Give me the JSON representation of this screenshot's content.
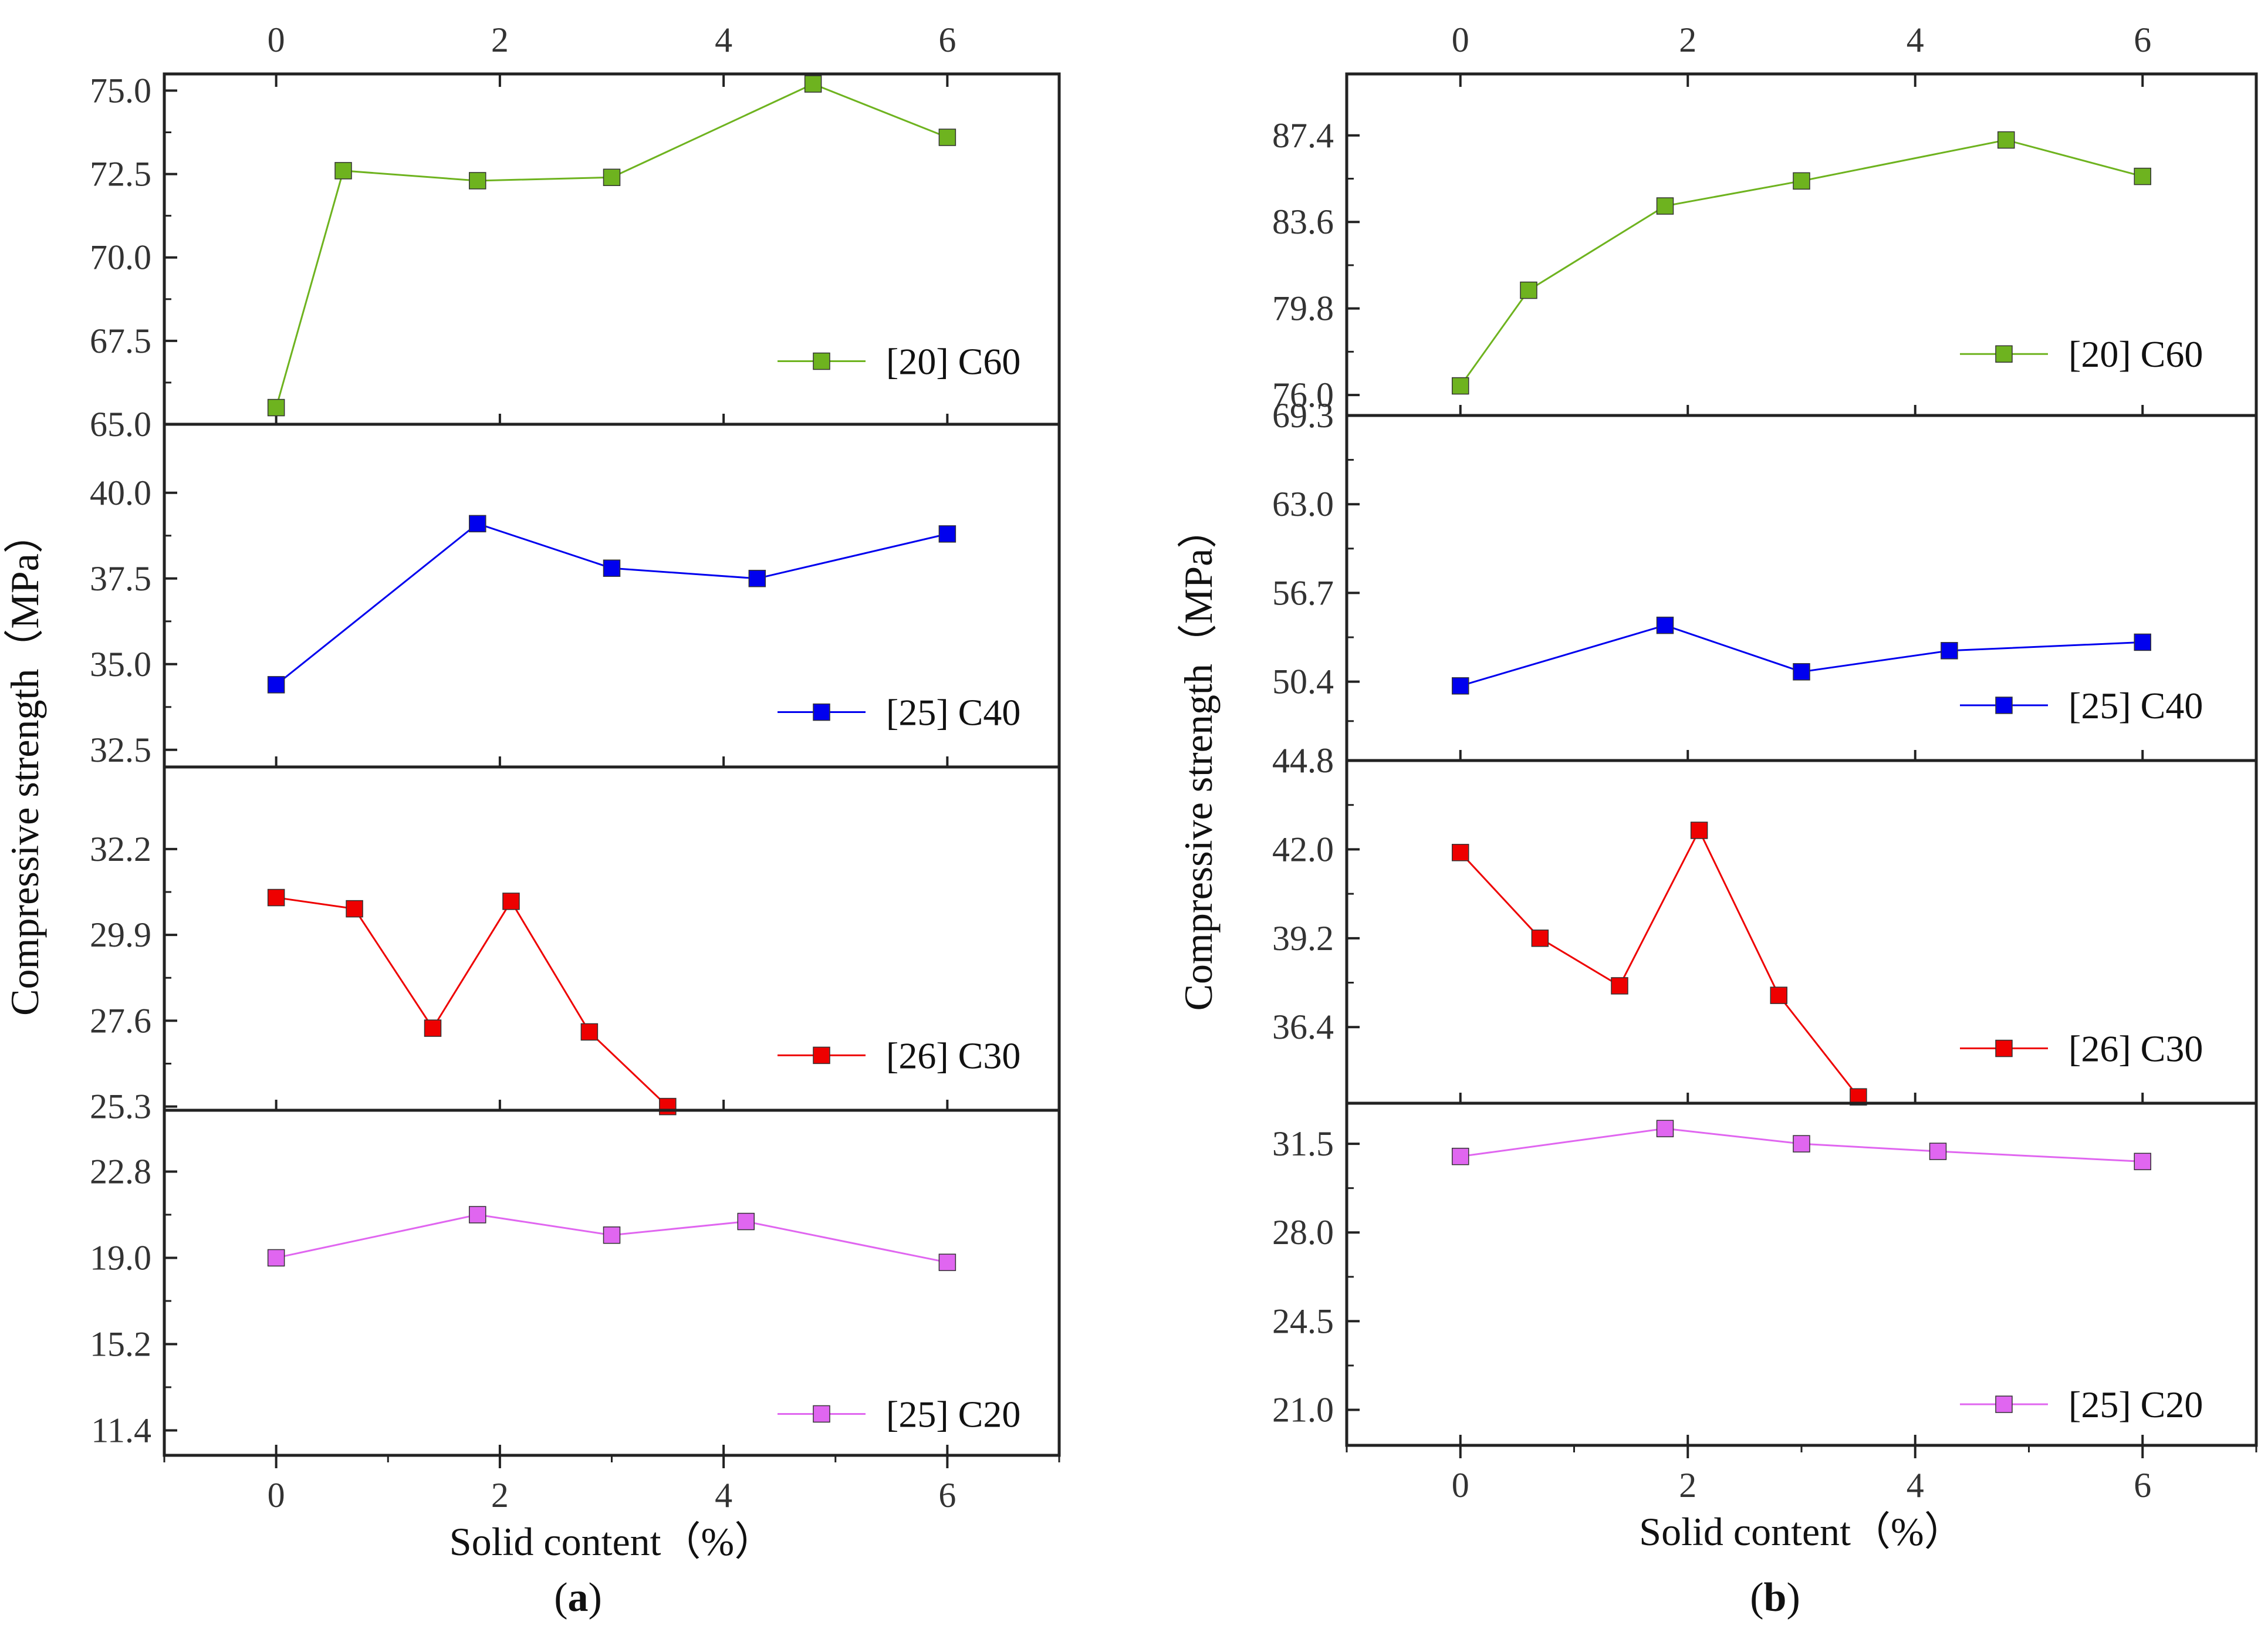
{
  "figure": {
    "ylabel": "Compressive strength（MPa）",
    "xlabel": "Solid content（%）"
  },
  "chart_data": [
    {
      "type": "line",
      "id": "a",
      "caption": {
        "open": "(",
        "letter": "a",
        "close": ")"
      },
      "xlabel": "Solid content（%）",
      "ylabel": "Compressive strength（MPa）",
      "xlim": [
        -1,
        7
      ],
      "xticks": [
        "0",
        "2",
        "4",
        "6"
      ],
      "panels": [
        {
          "name": "[20] C60",
          "color": "#6eb31f",
          "ylim": [
            65.0,
            75.5
          ],
          "yticks": [
            "65.0",
            "67.5",
            "70.0",
            "72.5",
            "75.0"
          ],
          "x": [
            0,
            0.6,
            1.8,
            3.0,
            4.8,
            6.0
          ],
          "y": [
            65.5,
            72.6,
            72.3,
            72.4,
            75.2,
            73.6
          ]
        },
        {
          "name": "[25] C40",
          "color": "#0000ee",
          "ylim": [
            32.0,
            42.0
          ],
          "yticks": [
            "32.5",
            "35.0",
            "37.5",
            "40.0"
          ],
          "x": [
            0,
            1.8,
            3.0,
            4.3,
            6.0
          ],
          "y": [
            34.4,
            39.1,
            37.8,
            37.5,
            38.8
          ]
        },
        {
          "name": "[26] C30",
          "color": "#ee0000",
          "ylim": [
            25.2,
            34.4
          ],
          "yticks": [
            "25.3",
            "27.6",
            "29.9",
            "32.2"
          ],
          "x": [
            0,
            0.7,
            1.4,
            2.1,
            2.8,
            3.5
          ],
          "y": [
            30.9,
            30.6,
            27.4,
            30.8,
            27.3,
            25.3
          ]
        },
        {
          "name": "[25] C20",
          "color": "#e066f0",
          "ylim": [
            10.3,
            25.5
          ],
          "yticks": [
            "11.4",
            "15.2",
            "19.0",
            "22.8"
          ],
          "x": [
            0,
            1.8,
            3.0,
            4.2,
            6.0
          ],
          "y": [
            19.0,
            20.9,
            20.0,
            20.6,
            18.8
          ]
        }
      ]
    },
    {
      "type": "line",
      "id": "b",
      "caption": {
        "open": "(",
        "letter": "b",
        "close": ")"
      },
      "xlabel": "Solid content（%）",
      "ylabel": "Compressive strength（MPa）",
      "xlim": [
        -1,
        7
      ],
      "xticks": [
        "0",
        "2",
        "4",
        "6"
      ],
      "panels": [
        {
          "name": "[20] C60",
          "color": "#6eb31f",
          "ylim": [
            75.1,
            90.1
          ],
          "yticks": [
            "76.0",
            "79.8",
            "83.6",
            "87.4"
          ],
          "x": [
            0,
            0.6,
            1.8,
            3.0,
            4.8,
            6.0
          ],
          "y": [
            76.4,
            80.6,
            84.3,
            85.4,
            87.2,
            85.6
          ]
        },
        {
          "name": "[25] C40",
          "color": "#0000ee",
          "ylim": [
            44.8,
            69.3
          ],
          "yticks": [
            "44.8",
            "50.4",
            "56.7",
            "63.0",
            "69.3"
          ],
          "x": [
            0,
            1.8,
            3.0,
            4.3,
            6.0
          ],
          "y": [
            50.1,
            54.4,
            51.1,
            52.6,
            53.2
          ]
        },
        {
          "name": "[26] C30",
          "color": "#ee0000",
          "ylim": [
            34.0,
            44.8
          ],
          "yticks": [
            "36.4",
            "39.2",
            "42.0",
            "44.8"
          ],
          "x": [
            0,
            0.7,
            1.4,
            2.1,
            2.8,
            3.5
          ],
          "y": [
            41.9,
            39.2,
            37.7,
            42.6,
            37.4,
            34.2
          ]
        },
        {
          "name": "[25] C20",
          "color": "#e066f0",
          "ylim": [
            19.6,
            33.1
          ],
          "yticks": [
            "21.0",
            "24.5",
            "28.0",
            "31.5"
          ],
          "x": [
            0,
            1.8,
            3.0,
            4.2,
            6.0
          ],
          "y": [
            31.0,
            32.1,
            31.5,
            31.2,
            30.8
          ]
        }
      ]
    }
  ]
}
